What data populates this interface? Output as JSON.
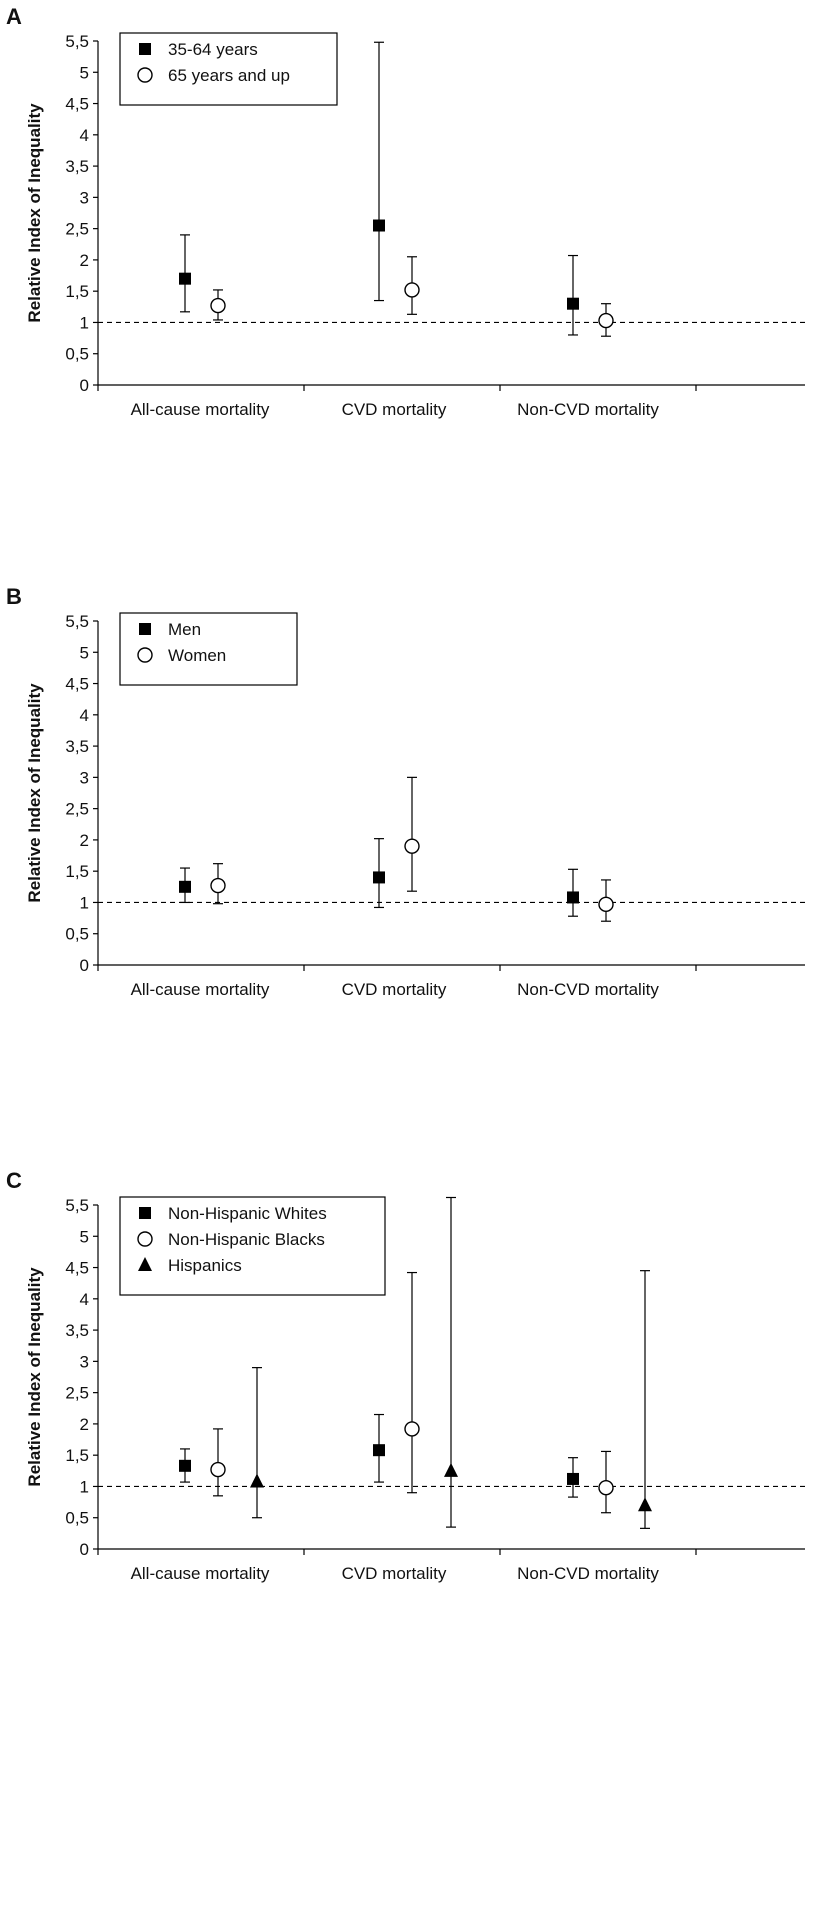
{
  "chart_data": [
    {
      "type": "scatter",
      "panel_label": "A",
      "ylabel": "Relative Index of Inequality",
      "ylim": [
        0,
        5.5
      ],
      "yticks": [
        "0",
        "0,5",
        "1",
        "1,5",
        "2",
        "2,5",
        "3",
        "3,5",
        "4",
        "4,5",
        "5",
        "5,5"
      ],
      "reference_line": 1,
      "categories": [
        "All-cause mortality",
        "CVD mortality",
        "Non-CVD mortality"
      ],
      "legend_position": "top-left",
      "series": [
        {
          "name": "35-64 years",
          "marker": "filled-square",
          "values": [
            1.7,
            2.55,
            1.3
          ],
          "lower": [
            1.17,
            1.35,
            0.8
          ],
          "upper": [
            2.4,
            5.48,
            2.07
          ]
        },
        {
          "name": "65 years and up",
          "marker": "open-circle",
          "values": [
            1.27,
            1.52,
            1.03
          ],
          "lower": [
            1.04,
            1.13,
            0.78
          ],
          "upper": [
            1.52,
            2.05,
            1.3
          ]
        }
      ]
    },
    {
      "type": "scatter",
      "panel_label": "B",
      "ylabel": "Relative Index of Inequality",
      "ylim": [
        0,
        5.5
      ],
      "yticks": [
        "0",
        "0,5",
        "1",
        "1,5",
        "2",
        "2,5",
        "3",
        "3,5",
        "4",
        "4,5",
        "5",
        "5,5"
      ],
      "reference_line": 1,
      "categories": [
        "All-cause mortality",
        "CVD mortality",
        "Non-CVD mortality"
      ],
      "legend_position": "top-left",
      "series": [
        {
          "name": "Men",
          "marker": "filled-square",
          "values": [
            1.25,
            1.4,
            1.08
          ],
          "lower": [
            1.0,
            0.92,
            0.78
          ],
          "upper": [
            1.55,
            2.02,
            1.53
          ]
        },
        {
          "name": "Women",
          "marker": "open-circle",
          "values": [
            1.27,
            1.9,
            0.97
          ],
          "lower": [
            0.98,
            1.18,
            0.7
          ],
          "upper": [
            1.62,
            3.0,
            1.36
          ]
        }
      ]
    },
    {
      "type": "scatter",
      "panel_label": "C",
      "ylabel": "Relative Index of Inequality",
      "ylim": [
        0,
        5.5
      ],
      "yticks": [
        "0",
        "0,5",
        "1",
        "1,5",
        "2",
        "2,5",
        "3",
        "3,5",
        "4",
        "4,5",
        "5",
        "5,5"
      ],
      "reference_line": 1,
      "categories": [
        "All-cause mortality",
        "CVD mortality",
        "Non-CVD mortality"
      ],
      "legend_position": "top-left",
      "series": [
        {
          "name": "Non-Hispanic Whites",
          "marker": "filled-square",
          "values": [
            1.33,
            1.58,
            1.12
          ],
          "lower": [
            1.07,
            1.07,
            0.83
          ],
          "upper": [
            1.6,
            2.15,
            1.46
          ]
        },
        {
          "name": "Non-Hispanic Blacks",
          "marker": "open-circle",
          "values": [
            1.27,
            1.92,
            0.98
          ],
          "lower": [
            0.85,
            0.9,
            0.58
          ],
          "upper": [
            1.92,
            4.42,
            1.56
          ]
        },
        {
          "name": "Hispanics",
          "marker": "filled-triangle",
          "values": [
            1.08,
            1.25,
            0.7
          ],
          "lower": [
            0.5,
            0.35,
            0.33
          ],
          "upper": [
            2.9,
            5.62,
            4.45
          ]
        }
      ]
    }
  ]
}
